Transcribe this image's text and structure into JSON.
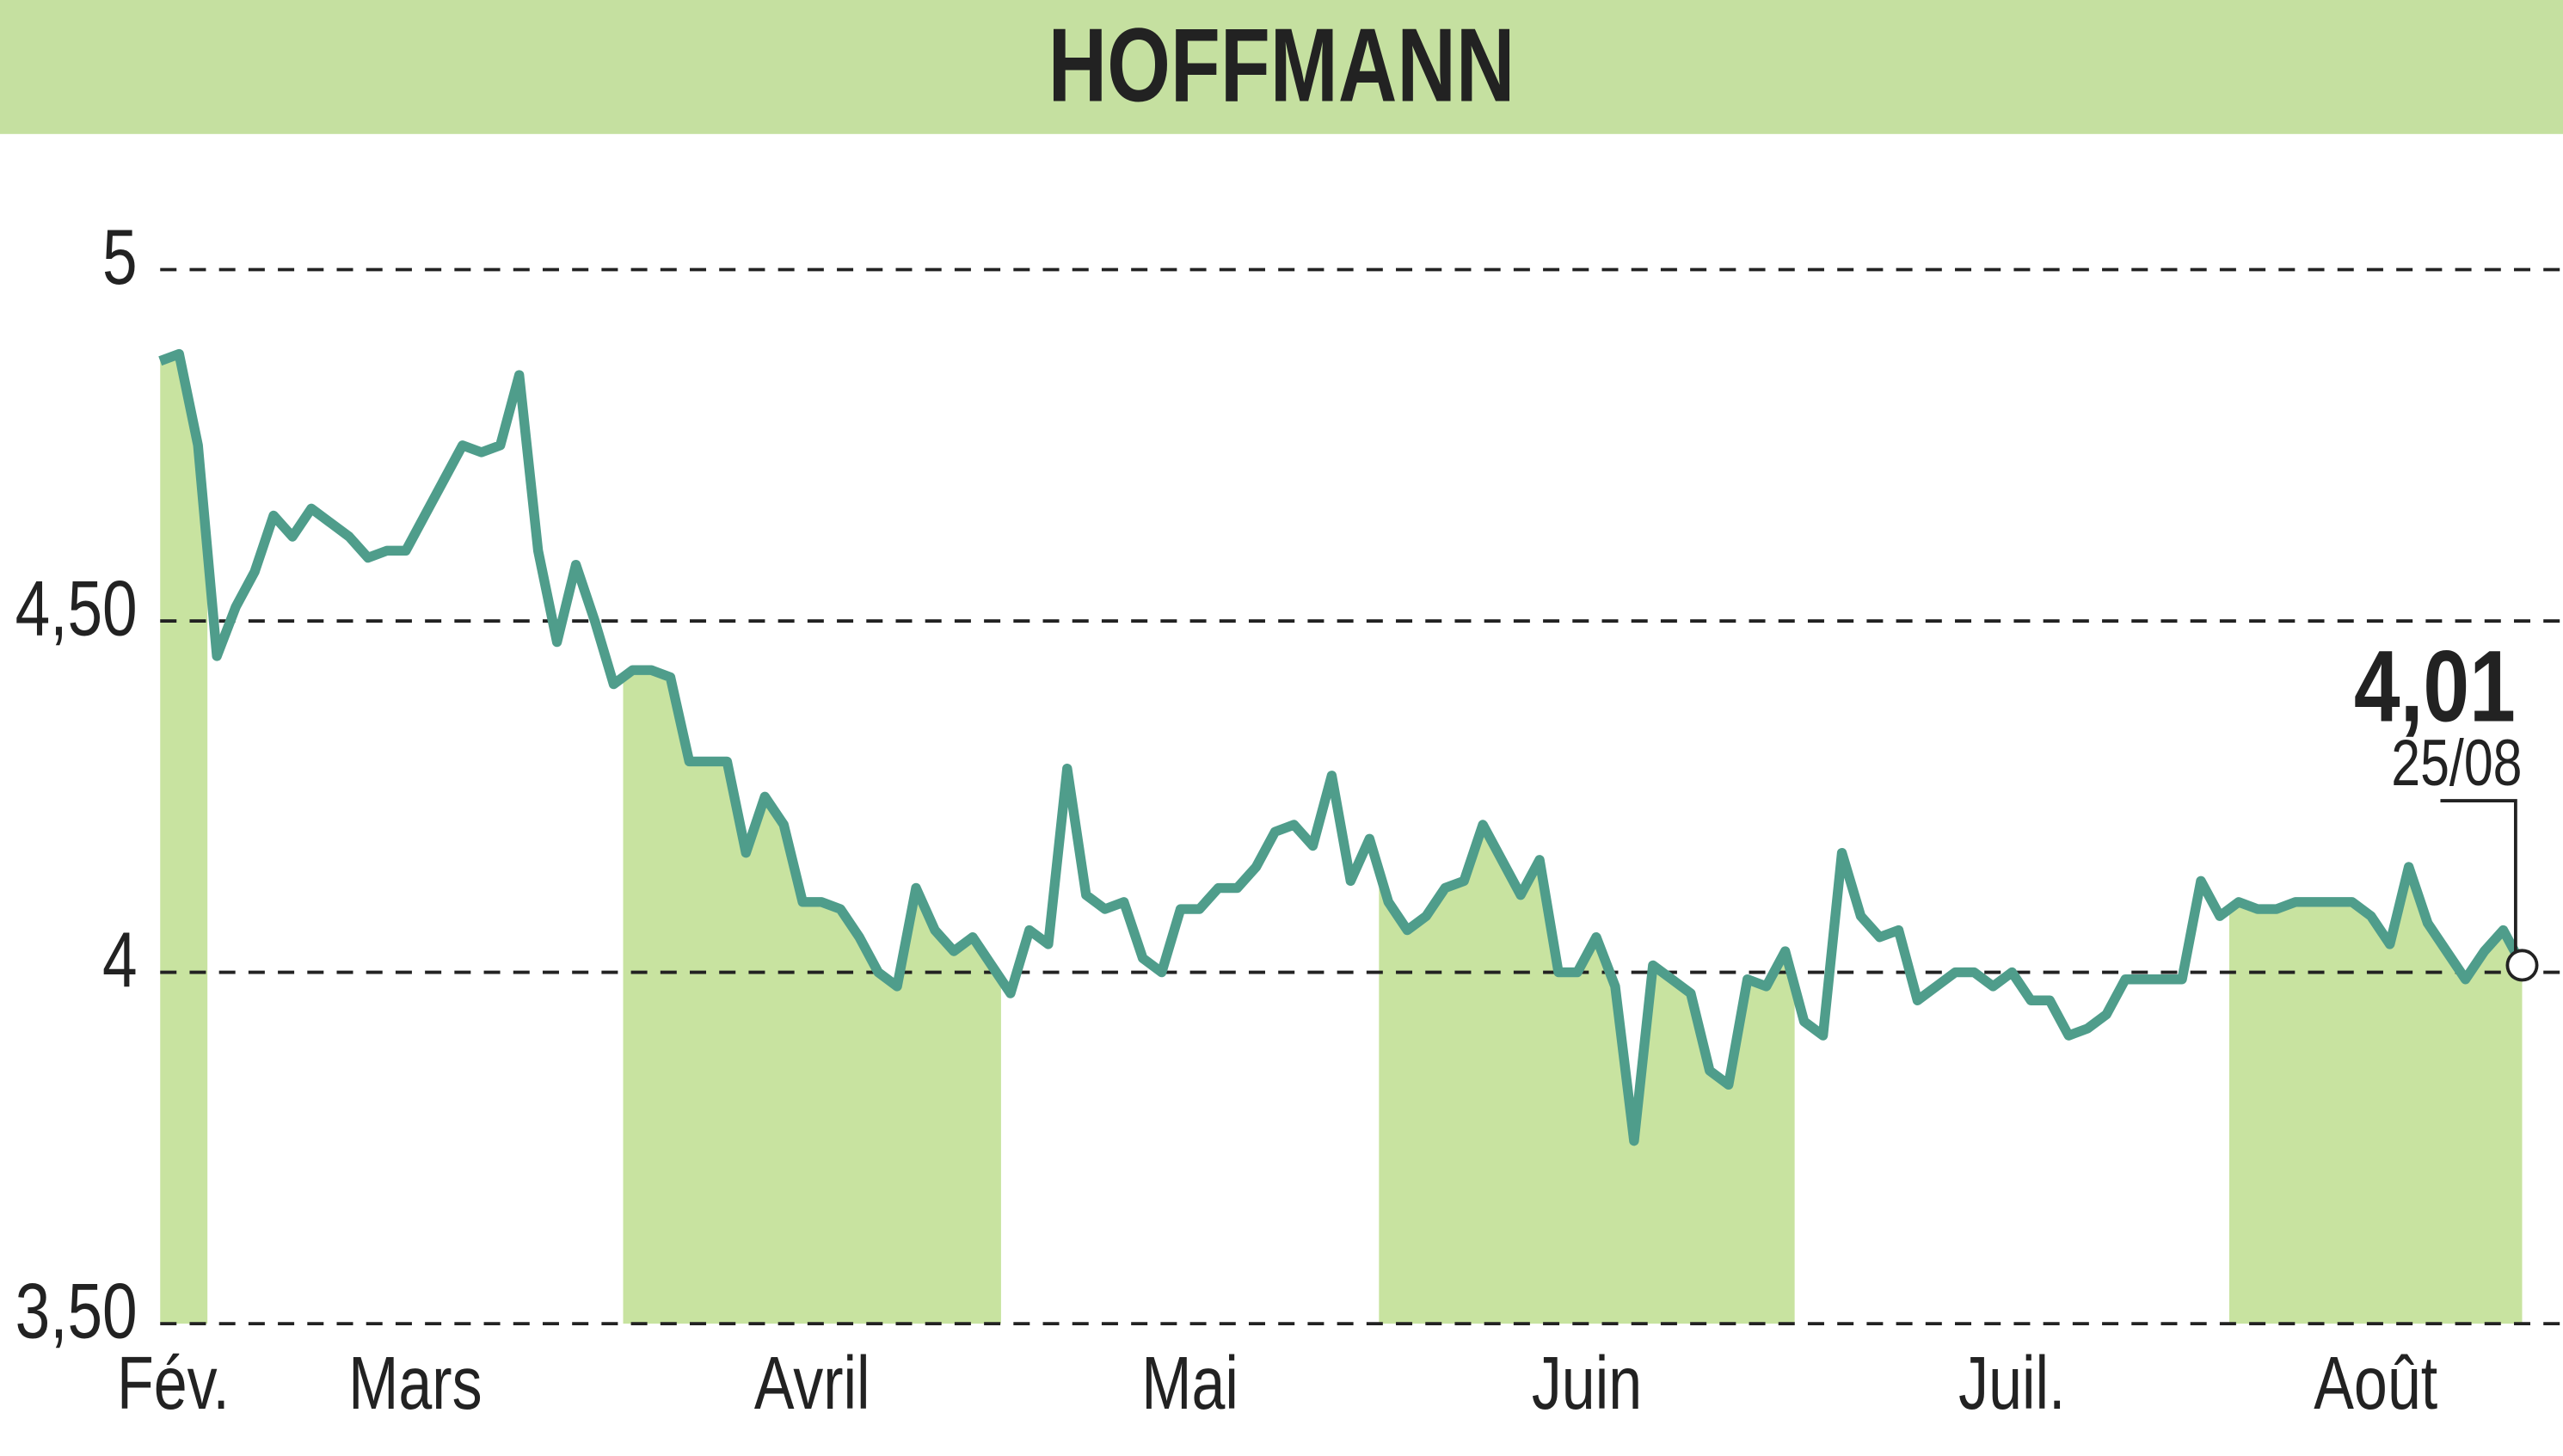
{
  "chart_data": {
    "type": "line",
    "title": "HOFFMANN",
    "categories": [
      "Fév.",
      null,
      null,
      "Mars",
      null,
      null,
      null,
      null,
      null,
      null,
      null,
      null,
      null,
      null,
      null,
      null,
      null,
      null,
      null,
      null,
      null,
      null,
      null,
      null,
      null,
      "Avril",
      null,
      null,
      null,
      null,
      null,
      null,
      null,
      null,
      null,
      null,
      null,
      null,
      null,
      null,
      null,
      null,
      null,
      null,
      null,
      "Mai",
      null,
      null,
      null,
      null,
      null,
      null,
      null,
      null,
      null,
      null,
      null,
      null,
      null,
      null,
      null,
      null,
      null,
      null,
      null,
      "Juin",
      null,
      null,
      null,
      null,
      null,
      null,
      null,
      null,
      null,
      null,
      null,
      null,
      null,
      null,
      null,
      null,
      null,
      null,
      null,
      null,
      null,
      "Juil.",
      null,
      null,
      null,
      null,
      null,
      null,
      null,
      null,
      null,
      null,
      null,
      null,
      null,
      null,
      null,
      null,
      null,
      null,
      null,
      null,
      null,
      null,
      "Août",
      null,
      null,
      null,
      null,
      null,
      null,
      null,
      null,
      null,
      null,
      null,
      null,
      null,
      null,
      null
    ],
    "values": [
      4.87,
      4.88,
      4.75,
      4.45,
      4.52,
      4.57,
      4.65,
      4.62,
      4.66,
      4.64,
      4.62,
      4.59,
      4.6,
      4.6,
      4.65,
      4.7,
      4.75,
      4.74,
      4.75,
      4.85,
      4.6,
      4.47,
      4.58,
      4.5,
      4.41,
      4.43,
      4.43,
      4.42,
      4.3,
      4.3,
      4.3,
      4.17,
      4.25,
      4.21,
      4.1,
      4.1,
      4.09,
      4.05,
      4.0,
      3.98,
      4.12,
      4.06,
      4.03,
      4.05,
      4.01,
      3.97,
      4.06,
      4.04,
      4.29,
      4.11,
      4.09,
      4.1,
      4.02,
      4.0,
      4.09,
      4.09,
      4.12,
      4.12,
      4.15,
      4.2,
      4.21,
      4.18,
      4.28,
      4.13,
      4.19,
      4.1,
      4.06,
      4.08,
      4.12,
      4.13,
      4.21,
      4.16,
      4.11,
      4.16,
      4.0,
      4.0,
      4.05,
      3.98,
      3.76,
      4.01,
      3.99,
      3.97,
      3.86,
      3.84,
      3.99,
      3.98,
      4.03,
      3.93,
      3.91,
      4.17,
      4.08,
      4.05,
      4.06,
      3.96,
      3.98,
      4.0,
      4.0,
      3.98,
      4.0,
      3.96,
      3.96,
      3.91,
      3.92,
      3.94,
      3.99,
      3.99,
      3.99,
      3.99,
      4.13,
      4.08,
      4.1,
      4.09,
      4.09,
      4.1,
      4.1,
      4.1,
      4.1,
      4.08,
      4.04,
      4.15,
      4.07,
      4.03,
      3.99,
      4.03,
      4.06,
      4.01
    ],
    "color": "#4f9d8b",
    "shade_color": "#c8e3a0",
    "ylim": [
      3.5,
      5.15
    ],
    "yticks": [
      {
        "value": 3.5,
        "label": "3,50"
      },
      4,
      {
        "value": 4.5,
        "label": "4,50"
      },
      5
    ],
    "grid": true,
    "last_label": "4,01",
    "last_date": "25/08"
  }
}
